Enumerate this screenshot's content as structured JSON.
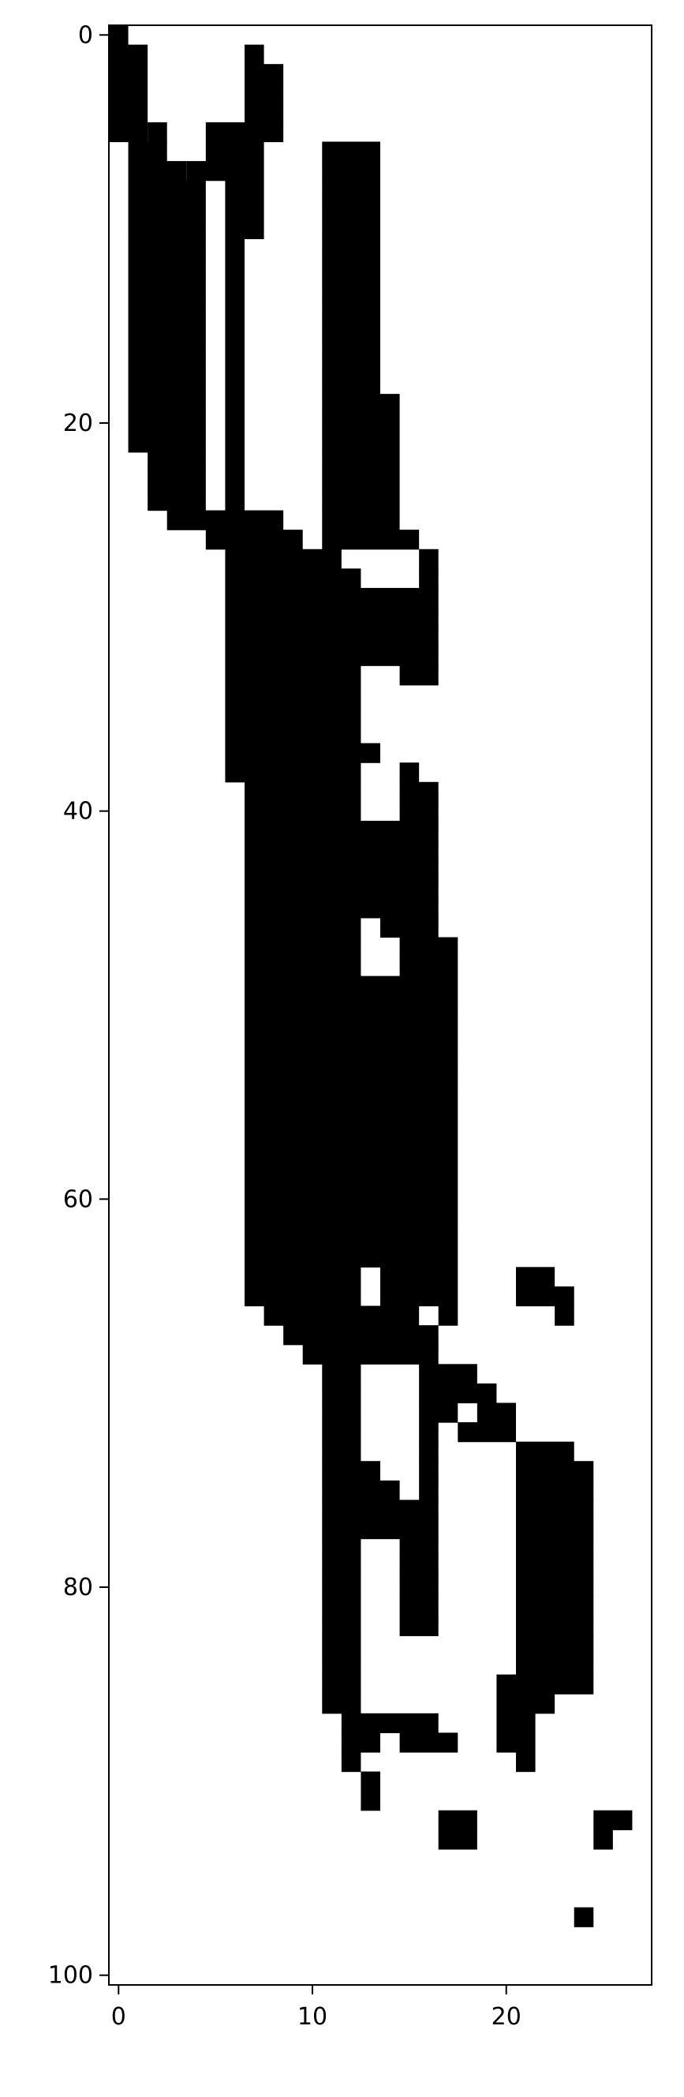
{
  "chart_data": {
    "type": "heatmap",
    "colormap": "binary",
    "colors": {
      "filled": "#000000",
      "empty": "#ffffff",
      "axis": "#000000"
    },
    "xlim": [
      -0.5,
      27.5
    ],
    "ylim": [
      100.5,
      -0.5
    ],
    "y_inverted": true,
    "grid": false,
    "x_ticks": [
      0,
      10,
      20
    ],
    "y_ticks": [
      0,
      20,
      40,
      60,
      80,
      100
    ],
    "x_tick_labels": [
      "0",
      "10",
      "20"
    ],
    "y_tick_labels": [
      "0",
      "20",
      "40",
      "60",
      "80",
      "100"
    ],
    "rows": 101,
    "cols": 28,
    "filled_runs": [
      [
        0,
        0,
        0
      ],
      [
        1,
        0,
        1
      ],
      [
        1,
        7,
        7
      ],
      [
        2,
        0,
        1
      ],
      [
        2,
        7,
        8
      ],
      [
        3,
        0,
        1
      ],
      [
        3,
        7,
        8
      ],
      [
        4,
        0,
        1
      ],
      [
        4,
        7,
        8
      ],
      [
        5,
        0,
        1
      ],
      [
        5,
        2,
        2
      ],
      [
        5,
        5,
        8
      ],
      [
        6,
        1,
        2
      ],
      [
        6,
        5,
        7
      ],
      [
        6,
        11,
        13
      ],
      [
        7,
        1,
        3
      ],
      [
        7,
        4,
        7
      ],
      [
        7,
        11,
        13
      ],
      [
        8,
        1,
        4
      ],
      [
        8,
        6,
        7
      ],
      [
        8,
        11,
        13
      ],
      [
        9,
        1,
        4
      ],
      [
        9,
        6,
        7
      ],
      [
        9,
        11,
        13
      ],
      [
        10,
        1,
        4
      ],
      [
        10,
        6,
        7
      ],
      [
        10,
        11,
        13
      ],
      [
        11,
        1,
        4
      ],
      [
        11,
        6,
        6
      ],
      [
        11,
        11,
        13
      ],
      [
        12,
        1,
        4
      ],
      [
        12,
        6,
        6
      ],
      [
        12,
        11,
        13
      ],
      [
        13,
        1,
        4
      ],
      [
        13,
        6,
        6
      ],
      [
        13,
        11,
        13
      ],
      [
        14,
        1,
        4
      ],
      [
        14,
        6,
        6
      ],
      [
        14,
        11,
        13
      ],
      [
        15,
        1,
        4
      ],
      [
        15,
        6,
        6
      ],
      [
        15,
        11,
        13
      ],
      [
        16,
        1,
        4
      ],
      [
        16,
        6,
        6
      ],
      [
        16,
        11,
        13
      ],
      [
        17,
        1,
        4
      ],
      [
        17,
        6,
        6
      ],
      [
        17,
        11,
        13
      ],
      [
        18,
        1,
        4
      ],
      [
        18,
        6,
        6
      ],
      [
        18,
        11,
        13
      ],
      [
        19,
        1,
        4
      ],
      [
        19,
        6,
        6
      ],
      [
        19,
        11,
        14
      ],
      [
        20,
        1,
        4
      ],
      [
        20,
        6,
        6
      ],
      [
        20,
        11,
        14
      ],
      [
        21,
        1,
        4
      ],
      [
        21,
        6,
        6
      ],
      [
        21,
        11,
        14
      ],
      [
        22,
        2,
        4
      ],
      [
        22,
        6,
        6
      ],
      [
        22,
        11,
        14
      ],
      [
        23,
        2,
        4
      ],
      [
        23,
        6,
        6
      ],
      [
        23,
        11,
        14
      ],
      [
        24,
        2,
        4
      ],
      [
        24,
        6,
        6
      ],
      [
        24,
        11,
        14
      ],
      [
        25,
        3,
        8
      ],
      [
        25,
        11,
        14
      ],
      [
        26,
        5,
        9
      ],
      [
        26,
        11,
        15
      ],
      [
        27,
        6,
        11
      ],
      [
        27,
        16,
        16
      ],
      [
        28,
        6,
        12
      ],
      [
        28,
        16,
        16
      ],
      [
        29,
        6,
        16
      ],
      [
        30,
        6,
        16
      ],
      [
        31,
        6,
        16
      ],
      [
        32,
        6,
        16
      ],
      [
        33,
        6,
        12
      ],
      [
        33,
        15,
        16
      ],
      [
        34,
        6,
        12
      ],
      [
        35,
        6,
        12
      ],
      [
        36,
        6,
        12
      ],
      [
        37,
        6,
        13
      ],
      [
        38,
        6,
        12
      ],
      [
        38,
        15,
        15
      ],
      [
        39,
        7,
        12
      ],
      [
        39,
        15,
        16
      ],
      [
        40,
        7,
        12
      ],
      [
        40,
        15,
        16
      ],
      [
        41,
        7,
        16
      ],
      [
        42,
        7,
        16
      ],
      [
        43,
        7,
        16
      ],
      [
        44,
        7,
        16
      ],
      [
        45,
        7,
        16
      ],
      [
        46,
        7,
        12
      ],
      [
        46,
        14,
        16
      ],
      [
        47,
        7,
        12
      ],
      [
        47,
        15,
        17
      ],
      [
        48,
        7,
        12
      ],
      [
        48,
        15,
        17
      ],
      [
        49,
        7,
        17
      ],
      [
        50,
        7,
        17
      ],
      [
        51,
        7,
        17
      ],
      [
        52,
        7,
        17
      ],
      [
        53,
        7,
        17
      ],
      [
        54,
        7,
        17
      ],
      [
        55,
        7,
        17
      ],
      [
        56,
        7,
        17
      ],
      [
        57,
        7,
        17
      ],
      [
        58,
        7,
        17
      ],
      [
        59,
        7,
        17
      ],
      [
        60,
        7,
        17
      ],
      [
        61,
        7,
        17
      ],
      [
        62,
        7,
        17
      ],
      [
        63,
        7,
        17
      ],
      [
        64,
        7,
        12
      ],
      [
        64,
        14,
        17
      ],
      [
        64,
        21,
        22
      ],
      [
        65,
        7,
        12
      ],
      [
        65,
        14,
        17
      ],
      [
        65,
        21,
        23
      ],
      [
        66,
        8,
        15
      ],
      [
        66,
        17,
        17
      ],
      [
        66,
        23,
        23
      ],
      [
        67,
        9,
        16
      ],
      [
        68,
        10,
        16
      ],
      [
        69,
        11,
        12
      ],
      [
        69,
        16,
        18
      ],
      [
        70,
        11,
        12
      ],
      [
        70,
        16,
        19
      ],
      [
        71,
        11,
        12
      ],
      [
        71,
        16,
        17
      ],
      [
        71,
        19,
        20
      ],
      [
        72,
        11,
        12
      ],
      [
        72,
        16,
        16
      ],
      [
        72,
        18,
        20
      ],
      [
        73,
        11,
        12
      ],
      [
        73,
        16,
        16
      ],
      [
        73,
        21,
        23
      ],
      [
        74,
        11,
        13
      ],
      [
        74,
        16,
        16
      ],
      [
        74,
        21,
        24
      ],
      [
        75,
        11,
        14
      ],
      [
        75,
        16,
        16
      ],
      [
        75,
        21,
        24
      ],
      [
        76,
        11,
        16
      ],
      [
        76,
        21,
        24
      ],
      [
        77,
        11,
        16
      ],
      [
        77,
        21,
        24
      ],
      [
        78,
        11,
        12
      ],
      [
        78,
        15,
        16
      ],
      [
        78,
        21,
        24
      ],
      [
        79,
        11,
        12
      ],
      [
        79,
        15,
        16
      ],
      [
        79,
        21,
        24
      ],
      [
        80,
        11,
        12
      ],
      [
        80,
        15,
        16
      ],
      [
        80,
        21,
        24
      ],
      [
        81,
        11,
        12
      ],
      [
        81,
        15,
        16
      ],
      [
        81,
        21,
        24
      ],
      [
        82,
        11,
        12
      ],
      [
        82,
        15,
        16
      ],
      [
        82,
        21,
        24
      ],
      [
        83,
        11,
        12
      ],
      [
        83,
        21,
        24
      ],
      [
        84,
        11,
        12
      ],
      [
        84,
        21,
        24
      ],
      [
        85,
        11,
        12
      ],
      [
        85,
        20,
        24
      ],
      [
        86,
        11,
        12
      ],
      [
        86,
        20,
        22
      ],
      [
        87,
        12,
        16
      ],
      [
        87,
        20,
        21
      ],
      [
        88,
        12,
        13
      ],
      [
        88,
        15,
        17
      ],
      [
        88,
        20,
        21
      ],
      [
        89,
        12,
        12
      ],
      [
        89,
        21,
        21
      ],
      [
        90,
        13,
        13
      ],
      [
        91,
        13,
        13
      ],
      [
        92,
        17,
        18
      ],
      [
        92,
        25,
        26
      ],
      [
        93,
        17,
        18
      ],
      [
        93,
        25,
        25
      ],
      [
        97,
        24,
        24
      ]
    ]
  }
}
